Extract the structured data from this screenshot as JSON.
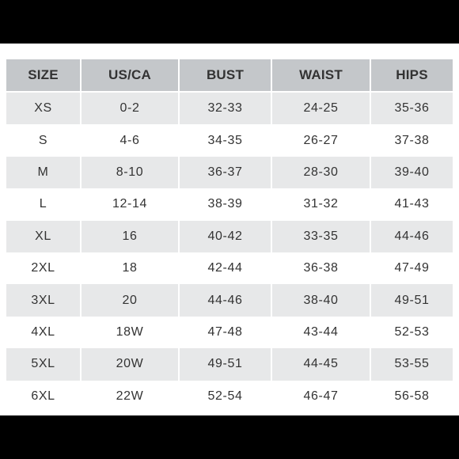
{
  "table": {
    "headers": [
      "SIZE",
      "US/CA",
      "BUST",
      "WAIST",
      "HIPS"
    ],
    "rows": [
      [
        "XS",
        "0-2",
        "32-33",
        "24-25",
        "35-36"
      ],
      [
        "S",
        "4-6",
        "34-35",
        "26-27",
        "37-38"
      ],
      [
        "M",
        "8-10",
        "36-37",
        "28-30",
        "39-40"
      ],
      [
        "L",
        "12-14",
        "38-39",
        "31-32",
        "41-43"
      ],
      [
        "XL",
        "16",
        "40-42",
        "33-35",
        "44-46"
      ],
      [
        "2XL",
        "18",
        "42-44",
        "36-38",
        "47-49"
      ],
      [
        "3XL",
        "20",
        "44-46",
        "38-40",
        "49-51"
      ],
      [
        "4XL",
        "18W",
        "47-48",
        "43-44",
        "52-53"
      ],
      [
        "5XL",
        "20W",
        "49-51",
        "44-45",
        "53-55"
      ],
      [
        "6XL",
        "22W",
        "52-54",
        "46-47",
        "56-58"
      ]
    ]
  },
  "colors": {
    "header_bg": "#c4c7ca",
    "stripe_bg": "#e7e8e9",
    "text": "#333333",
    "border": "#ffffff",
    "outer_bg": "#000000"
  }
}
